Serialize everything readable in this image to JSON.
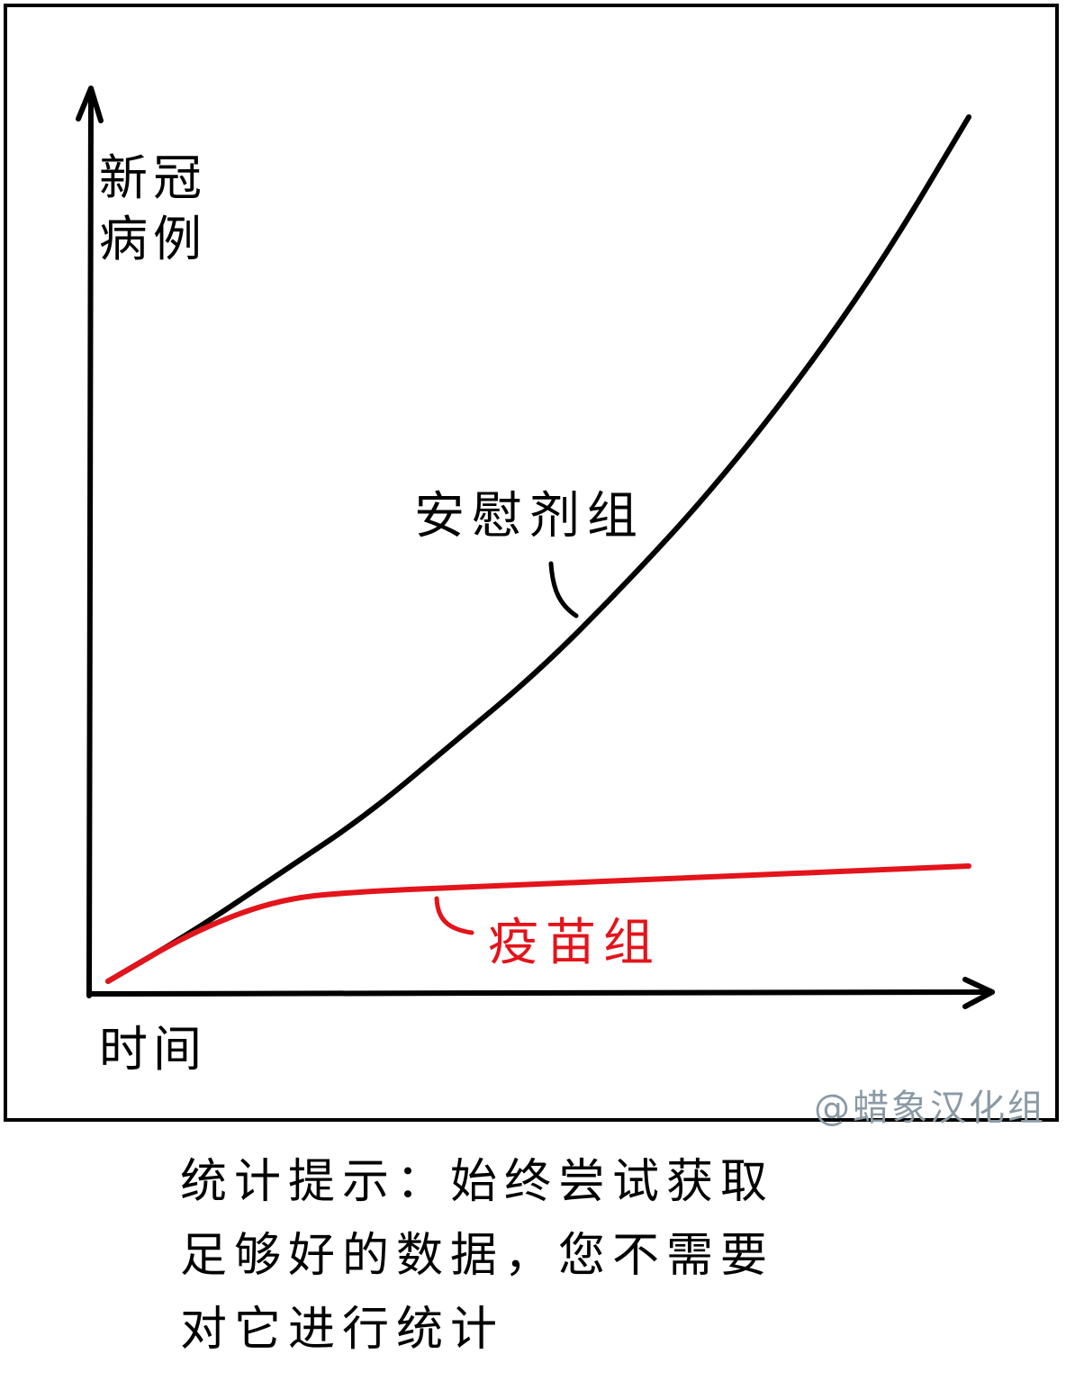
{
  "chart_data": {
    "type": "line",
    "title": "",
    "ylabel_lines": [
      "新冠",
      "病例"
    ],
    "xlabel": "时间",
    "x": [
      0,
      1,
      2,
      3,
      4,
      5,
      6,
      7,
      8,
      9,
      10
    ],
    "series": [
      {
        "name": "安慰剂组",
        "color": "#000000",
        "values": [
          0,
          0.07,
          0.15,
          0.23,
          0.33,
          0.43,
          0.55,
          0.68,
          0.83,
          1.0,
          1.2
        ]
      },
      {
        "name": "疫苗组",
        "color": "#e3141b",
        "values": [
          0,
          0.07,
          0.115,
          0.125,
          0.13,
          0.135,
          0.14,
          0.145,
          0.15,
          0.155,
          0.16
        ]
      }
    ],
    "xlim": [
      0,
      10.8
    ],
    "ylim": [
      0,
      1.32
    ],
    "grid": false,
    "legend": "none"
  },
  "credit": "@蜡象汉化组",
  "caption_lines": [
    "统计提示：始终尝试获取",
    "足够好的数据，您不需要",
    "对它进行统计"
  ]
}
